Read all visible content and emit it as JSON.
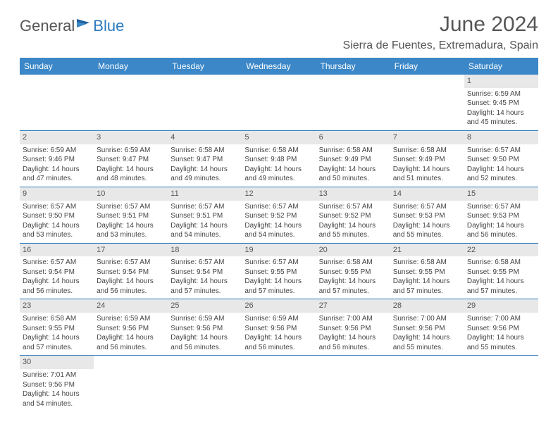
{
  "logo": {
    "part1": "General",
    "part2": "Blue"
  },
  "title": "June 2024",
  "location": "Sierra de Fuentes, Extremadura, Spain",
  "colors": {
    "header_bg": "#3b87c8",
    "border": "#2b7bbf",
    "daynum_bg": "#e8e8e8",
    "text": "#444444",
    "title_text": "#555555"
  },
  "weekdays": [
    "Sunday",
    "Monday",
    "Tuesday",
    "Wednesday",
    "Thursday",
    "Friday",
    "Saturday"
  ],
  "weeks": [
    [
      {
        "n": "",
        "lines": []
      },
      {
        "n": "",
        "lines": []
      },
      {
        "n": "",
        "lines": []
      },
      {
        "n": "",
        "lines": []
      },
      {
        "n": "",
        "lines": []
      },
      {
        "n": "",
        "lines": []
      },
      {
        "n": "1",
        "lines": [
          "Sunrise: 6:59 AM",
          "Sunset: 9:45 PM",
          "Daylight: 14 hours",
          "and 45 minutes."
        ]
      }
    ],
    [
      {
        "n": "2",
        "lines": [
          "Sunrise: 6:59 AM",
          "Sunset: 9:46 PM",
          "Daylight: 14 hours",
          "and 47 minutes."
        ]
      },
      {
        "n": "3",
        "lines": [
          "Sunrise: 6:59 AM",
          "Sunset: 9:47 PM",
          "Daylight: 14 hours",
          "and 48 minutes."
        ]
      },
      {
        "n": "4",
        "lines": [
          "Sunrise: 6:58 AM",
          "Sunset: 9:47 PM",
          "Daylight: 14 hours",
          "and 49 minutes."
        ]
      },
      {
        "n": "5",
        "lines": [
          "Sunrise: 6:58 AM",
          "Sunset: 9:48 PM",
          "Daylight: 14 hours",
          "and 49 minutes."
        ]
      },
      {
        "n": "6",
        "lines": [
          "Sunrise: 6:58 AM",
          "Sunset: 9:49 PM",
          "Daylight: 14 hours",
          "and 50 minutes."
        ]
      },
      {
        "n": "7",
        "lines": [
          "Sunrise: 6:58 AM",
          "Sunset: 9:49 PM",
          "Daylight: 14 hours",
          "and 51 minutes."
        ]
      },
      {
        "n": "8",
        "lines": [
          "Sunrise: 6:57 AM",
          "Sunset: 9:50 PM",
          "Daylight: 14 hours",
          "and 52 minutes."
        ]
      }
    ],
    [
      {
        "n": "9",
        "lines": [
          "Sunrise: 6:57 AM",
          "Sunset: 9:50 PM",
          "Daylight: 14 hours",
          "and 53 minutes."
        ]
      },
      {
        "n": "10",
        "lines": [
          "Sunrise: 6:57 AM",
          "Sunset: 9:51 PM",
          "Daylight: 14 hours",
          "and 53 minutes."
        ]
      },
      {
        "n": "11",
        "lines": [
          "Sunrise: 6:57 AM",
          "Sunset: 9:51 PM",
          "Daylight: 14 hours",
          "and 54 minutes."
        ]
      },
      {
        "n": "12",
        "lines": [
          "Sunrise: 6:57 AM",
          "Sunset: 9:52 PM",
          "Daylight: 14 hours",
          "and 54 minutes."
        ]
      },
      {
        "n": "13",
        "lines": [
          "Sunrise: 6:57 AM",
          "Sunset: 9:52 PM",
          "Daylight: 14 hours",
          "and 55 minutes."
        ]
      },
      {
        "n": "14",
        "lines": [
          "Sunrise: 6:57 AM",
          "Sunset: 9:53 PM",
          "Daylight: 14 hours",
          "and 55 minutes."
        ]
      },
      {
        "n": "15",
        "lines": [
          "Sunrise: 6:57 AM",
          "Sunset: 9:53 PM",
          "Daylight: 14 hours",
          "and 56 minutes."
        ]
      }
    ],
    [
      {
        "n": "16",
        "lines": [
          "Sunrise: 6:57 AM",
          "Sunset: 9:54 PM",
          "Daylight: 14 hours",
          "and 56 minutes."
        ]
      },
      {
        "n": "17",
        "lines": [
          "Sunrise: 6:57 AM",
          "Sunset: 9:54 PM",
          "Daylight: 14 hours",
          "and 56 minutes."
        ]
      },
      {
        "n": "18",
        "lines": [
          "Sunrise: 6:57 AM",
          "Sunset: 9:54 PM",
          "Daylight: 14 hours",
          "and 57 minutes."
        ]
      },
      {
        "n": "19",
        "lines": [
          "Sunrise: 6:57 AM",
          "Sunset: 9:55 PM",
          "Daylight: 14 hours",
          "and 57 minutes."
        ]
      },
      {
        "n": "20",
        "lines": [
          "Sunrise: 6:58 AM",
          "Sunset: 9:55 PM",
          "Daylight: 14 hours",
          "and 57 minutes."
        ]
      },
      {
        "n": "21",
        "lines": [
          "Sunrise: 6:58 AM",
          "Sunset: 9:55 PM",
          "Daylight: 14 hours",
          "and 57 minutes."
        ]
      },
      {
        "n": "22",
        "lines": [
          "Sunrise: 6:58 AM",
          "Sunset: 9:55 PM",
          "Daylight: 14 hours",
          "and 57 minutes."
        ]
      }
    ],
    [
      {
        "n": "23",
        "lines": [
          "Sunrise: 6:58 AM",
          "Sunset: 9:55 PM",
          "Daylight: 14 hours",
          "and 57 minutes."
        ]
      },
      {
        "n": "24",
        "lines": [
          "Sunrise: 6:59 AM",
          "Sunset: 9:56 PM",
          "Daylight: 14 hours",
          "and 56 minutes."
        ]
      },
      {
        "n": "25",
        "lines": [
          "Sunrise: 6:59 AM",
          "Sunset: 9:56 PM",
          "Daylight: 14 hours",
          "and 56 minutes."
        ]
      },
      {
        "n": "26",
        "lines": [
          "Sunrise: 6:59 AM",
          "Sunset: 9:56 PM",
          "Daylight: 14 hours",
          "and 56 minutes."
        ]
      },
      {
        "n": "27",
        "lines": [
          "Sunrise: 7:00 AM",
          "Sunset: 9:56 PM",
          "Daylight: 14 hours",
          "and 56 minutes."
        ]
      },
      {
        "n": "28",
        "lines": [
          "Sunrise: 7:00 AM",
          "Sunset: 9:56 PM",
          "Daylight: 14 hours",
          "and 55 minutes."
        ]
      },
      {
        "n": "29",
        "lines": [
          "Sunrise: 7:00 AM",
          "Sunset: 9:56 PM",
          "Daylight: 14 hours",
          "and 55 minutes."
        ]
      }
    ],
    [
      {
        "n": "30",
        "lines": [
          "Sunrise: 7:01 AM",
          "Sunset: 9:56 PM",
          "Daylight: 14 hours",
          "and 54 minutes."
        ]
      },
      {
        "n": "",
        "lines": []
      },
      {
        "n": "",
        "lines": []
      },
      {
        "n": "",
        "lines": []
      },
      {
        "n": "",
        "lines": []
      },
      {
        "n": "",
        "lines": []
      },
      {
        "n": "",
        "lines": []
      }
    ]
  ]
}
